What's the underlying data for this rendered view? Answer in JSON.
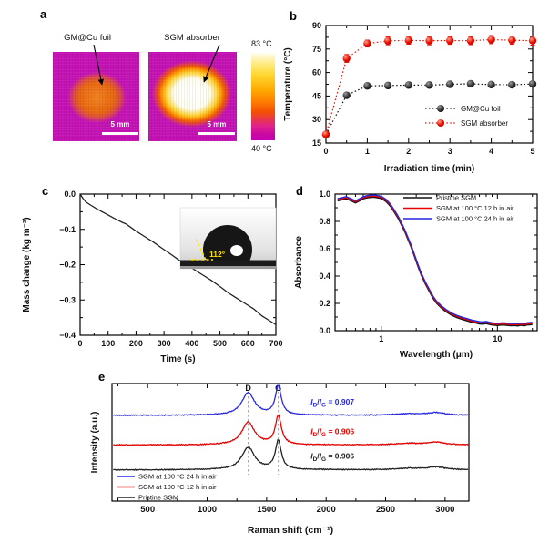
{
  "figure": {
    "letters": {
      "a": "a",
      "b": "b",
      "c": "c",
      "d": "d",
      "e": "e"
    },
    "panel_a": {
      "left_label": "GM@Cu foil",
      "right_label": "SGM absorber",
      "scalebar_left": "5 mm",
      "scalebar_right": "5 mm",
      "colorbar_max": "83 °C",
      "colorbar_min": "40 °C",
      "colors": {
        "background_magenta": "#c412b4",
        "hot_core_white": "#ffffff",
        "warm_orange": "#e8660f"
      }
    }
  },
  "chart_data": [
    {
      "id": "panel-b",
      "type": "scatter",
      "xlabel": "Irradiation time (min)",
      "ylabel": "Temperature (°C)",
      "xlim": [
        0,
        5
      ],
      "ylim": [
        15,
        90
      ],
      "xticks": [
        0,
        1,
        2,
        3,
        4,
        5
      ],
      "xminor": [
        0.5,
        1.5,
        2.5,
        3.5,
        4.5
      ],
      "yticks": [
        15,
        30,
        45,
        60,
        75,
        90
      ],
      "yminor": [
        22.5,
        37.5,
        52.5,
        67.5,
        82.5
      ],
      "x": [
        0,
        0.5,
        1,
        1.5,
        2,
        2.5,
        3,
        3.5,
        4,
        4.5,
        5
      ],
      "series": [
        {
          "name": "GM@Cu foil",
          "color": "#111111",
          "values": [
            20.5,
            45.5,
            51.5,
            51.7,
            52.0,
            52.0,
            52.5,
            52.8,
            52.3,
            52.2,
            52.7
          ],
          "errors": [
            0.8,
            1.5,
            1.2,
            1.0,
            1.0,
            1.0,
            1.2,
            1.0,
            1.0,
            1.0,
            1.2
          ]
        },
        {
          "name": "SGM absorber",
          "color": "#ee1000",
          "values": [
            20.5,
            69.0,
            78.5,
            80.2,
            80.5,
            80.3,
            80.4,
            80.3,
            81.0,
            80.6,
            80.3
          ],
          "errors": [
            1.2,
            2.5,
            2.2,
            2.5,
            2.4,
            2.6,
            2.4,
            2.5,
            2.6,
            2.5,
            2.8
          ]
        }
      ],
      "legend_position": "lower right",
      "line_style": "dotted",
      "grid": false
    },
    {
      "id": "panel-c",
      "type": "line",
      "xlabel": "Time (s)",
      "ylabel": "Mass change (kg m⁻²)",
      "xlim": [
        0,
        700
      ],
      "ylim": [
        -0.4,
        0
      ],
      "xticks": [
        0,
        100,
        200,
        300,
        400,
        500,
        600,
        700
      ],
      "yticks": [
        0,
        -0.1,
        -0.2,
        -0.3,
        -0.4
      ],
      "color": "#222222",
      "points": [
        [
          0,
          0
        ],
        [
          10,
          -0.012
        ],
        [
          20,
          -0.022
        ],
        [
          35,
          -0.03
        ],
        [
          60,
          -0.042
        ],
        [
          90,
          -0.055
        ],
        [
          120,
          -0.068
        ],
        [
          150,
          -0.08
        ],
        [
          165,
          -0.085
        ],
        [
          200,
          -0.105
        ],
        [
          230,
          -0.12
        ],
        [
          260,
          -0.135
        ],
        [
          290,
          -0.152
        ],
        [
          320,
          -0.168
        ],
        [
          350,
          -0.185
        ],
        [
          380,
          -0.2
        ],
        [
          410,
          -0.215
        ],
        [
          440,
          -0.23
        ],
        [
          470,
          -0.245
        ],
        [
          500,
          -0.262
        ],
        [
          530,
          -0.28
        ],
        [
          560,
          -0.295
        ],
        [
          590,
          -0.31
        ],
        [
          620,
          -0.325
        ],
        [
          650,
          -0.345
        ],
        [
          680,
          -0.36
        ],
        [
          700,
          -0.37
        ]
      ],
      "inset": {
        "contact_angle_label": "112°",
        "annotation_color": "#ffe400"
      },
      "grid": false
    },
    {
      "id": "panel-d",
      "type": "line",
      "xscale": "log",
      "xlabel": "Wavelength (μm)",
      "ylabel": "Absorbance",
      "xlim": [
        0.4,
        22
      ],
      "ylim": [
        0,
        1
      ],
      "xticks": [
        1,
        10
      ],
      "xminor": [
        0.5,
        0.6,
        0.7,
        0.8,
        0.9,
        2,
        3,
        4,
        5,
        6,
        7,
        8,
        9,
        20
      ],
      "yticks": [
        0,
        0.2,
        0.4,
        0.6,
        0.8,
        1.0
      ],
      "yminor": [
        0.1,
        0.3,
        0.5,
        0.7,
        0.9
      ],
      "base_points": [
        [
          0.42,
          0.95
        ],
        [
          0.5,
          0.965
        ],
        [
          0.55,
          0.95
        ],
        [
          0.6,
          0.935
        ],
        [
          0.65,
          0.95
        ],
        [
          0.7,
          0.965
        ],
        [
          0.75,
          0.972
        ],
        [
          0.8,
          0.975
        ],
        [
          0.85,
          0.977
        ],
        [
          0.9,
          0.975
        ],
        [
          1.0,
          0.968
        ],
        [
          1.1,
          0.945
        ],
        [
          1.2,
          0.91
        ],
        [
          1.3,
          0.865
        ],
        [
          1.4,
          0.82
        ],
        [
          1.5,
          0.77
        ],
        [
          1.6,
          0.72
        ],
        [
          1.7,
          0.665
        ],
        [
          1.8,
          0.615
        ],
        [
          1.9,
          0.56
        ],
        [
          2.0,
          0.505
        ],
        [
          2.1,
          0.455
        ],
        [
          2.2,
          0.41
        ],
        [
          2.4,
          0.34
        ],
        [
          2.6,
          0.285
        ],
        [
          2.8,
          0.235
        ],
        [
          3.0,
          0.2
        ],
        [
          3.3,
          0.165
        ],
        [
          3.6,
          0.14
        ],
        [
          4.0,
          0.115
        ],
        [
          4.5,
          0.095
        ],
        [
          5.0,
          0.082
        ],
        [
          5.5,
          0.072
        ],
        [
          6.0,
          0.062
        ],
        [
          6.5,
          0.056
        ],
        [
          7.0,
          0.05
        ],
        [
          7.5,
          0.048
        ],
        [
          8.0,
          0.052
        ],
        [
          8.5,
          0.046
        ],
        [
          9.0,
          0.042
        ],
        [
          10.0,
          0.038
        ],
        [
          11,
          0.042
        ],
        [
          12,
          0.04
        ],
        [
          13,
          0.036
        ],
        [
          14,
          0.038
        ],
        [
          15,
          0.035
        ],
        [
          16,
          0.04
        ],
        [
          17,
          0.036
        ],
        [
          18,
          0.042
        ],
        [
          20,
          0.045
        ]
      ],
      "series": [
        {
          "name": "Pristine SGM",
          "color": "#111111",
          "dy": 0
        },
        {
          "name": "SGM at 100 °C 12 h in air",
          "color": "#e60000",
          "dy": 0.008
        },
        {
          "name": "SGM at 100 °C 24 h in air",
          "color": "#2525dd",
          "dy": 0.016
        }
      ],
      "legend_position": "upper right",
      "grid": false
    },
    {
      "id": "panel-e",
      "type": "spectra",
      "xlabel": "Raman shift (cm⁻¹)",
      "ylabel": "Intensity (a.u.)",
      "xlim": [
        200,
        3200
      ],
      "xticks": [
        500,
        1000,
        1500,
        2000,
        2500,
        3000
      ],
      "xminor_step": 250,
      "peaks": {
        "D": {
          "center": 1345,
          "amp": 0.95,
          "width": 65
        },
        "G": {
          "center": 1598,
          "amp": 1.22,
          "width": 30
        },
        "band_2D": {
          "center": 2690,
          "amp": 0.06,
          "width": 130
        },
        "band_DG": {
          "center": 2925,
          "amp": 0.11,
          "width": 90
        }
      },
      "peak_labels": [
        {
          "text": "D",
          "x": 1345
        },
        {
          "text": "G",
          "x": 1598
        }
      ],
      "dashed_lines": [
        1345,
        1598
      ],
      "series": [
        {
          "name": "SGM at 100 °C 24 h in air",
          "color": "#2a2ae0",
          "offset": 3.6,
          "ratio": {
            "numerator": "I",
            "numerator_sub": "D",
            "denominator": "I",
            "denominator_sub": "G",
            "value": "0.907"
          }
        },
        {
          "name": "SGM at 100 °C 12 h in air",
          "color": "#e60000",
          "offset": 2.35,
          "ratio": {
            "numerator": "I",
            "numerator_sub": "D",
            "denominator": "I",
            "denominator_sub": "G",
            "value": "0.906"
          }
        },
        {
          "name": "Pristine SGM",
          "color": "#222222",
          "offset": 1.3,
          "ratio": {
            "numerator": "I",
            "numerator_sub": "D",
            "denominator": "I",
            "denominator_sub": "G",
            "value": "0.906"
          }
        }
      ],
      "legend_position": "lower left",
      "grid": false
    }
  ]
}
